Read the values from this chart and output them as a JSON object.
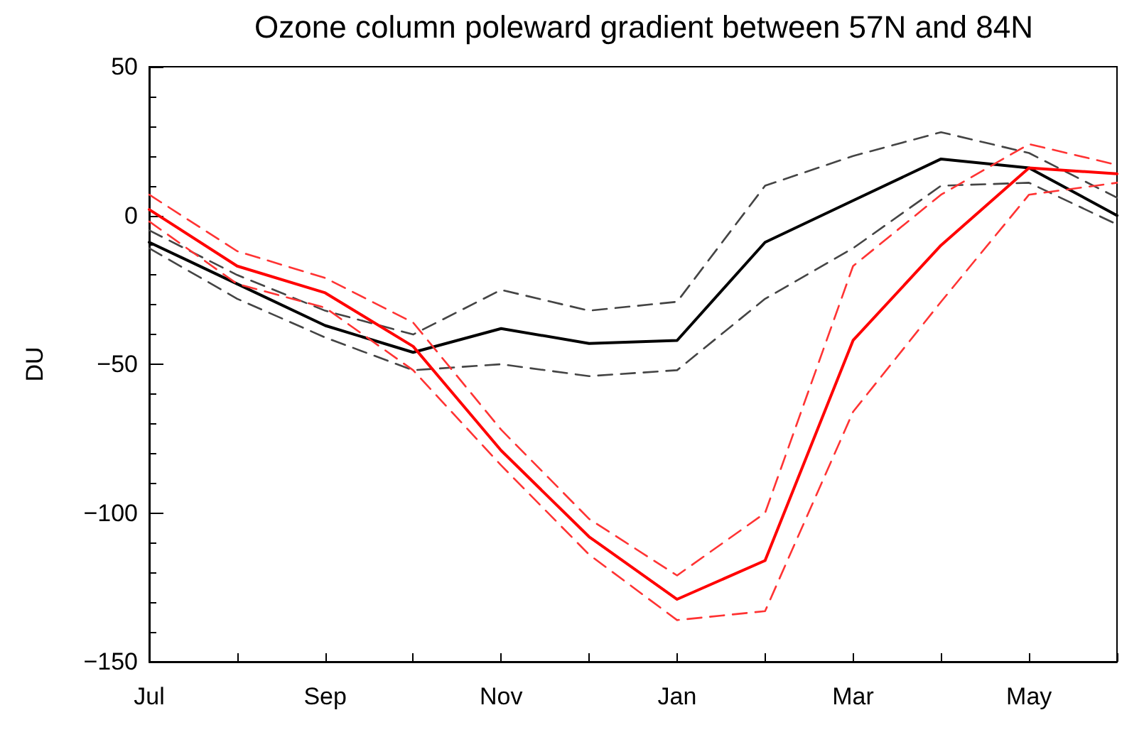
{
  "chart_data": {
    "type": "line",
    "title": "Ozone column poleward gradient between 57N and 84N",
    "ylabel": "DU",
    "categories": [
      "Jul",
      null,
      "Sep",
      null,
      "Nov",
      null,
      "Jan",
      null,
      "Mar",
      null,
      "May",
      null
    ],
    "series": [
      {
        "color": "#444444",
        "line_style": "dashed",
        "values": [
          -5,
          -20,
          -32,
          -40,
          -25,
          -32,
          -29,
          10,
          20,
          28,
          21,
          6
        ]
      },
      {
        "color": "#444444",
        "line_style": "dashed",
        "values": [
          -11,
          -28,
          -41,
          -52,
          -50,
          -54,
          -52,
          -28,
          -11,
          10,
          11,
          -3
        ]
      },
      {
        "color": "#000000",
        "line_style": "solid",
        "values": [
          -9,
          -23,
          -37,
          -46,
          -38,
          -43,
          -42,
          -9,
          5,
          19,
          16,
          0
        ]
      },
      {
        "color": "#ff3333",
        "line_style": "dashed",
        "values": [
          7,
          -12,
          -21,
          -36,
          -72,
          -102,
          -121,
          -100,
          -17,
          7,
          24,
          17
        ]
      },
      {
        "color": "#ff3333",
        "line_style": "dashed",
        "values": [
          -2,
          -23,
          -31,
          -52,
          -84,
          -114,
          -136,
          -133,
          -66,
          -29,
          7,
          11
        ]
      },
      {
        "color": "#ff0000",
        "line_style": "solid",
        "values": [
          2,
          -17,
          -26,
          -44,
          -79,
          -108,
          -129,
          -116,
          -42,
          -10,
          16,
          14
        ]
      }
    ],
    "ylim": [
      -150,
      50
    ],
    "yticks": [
      -150,
      -100,
      -50,
      0,
      50
    ],
    "grid": false,
    "marker": "none"
  }
}
